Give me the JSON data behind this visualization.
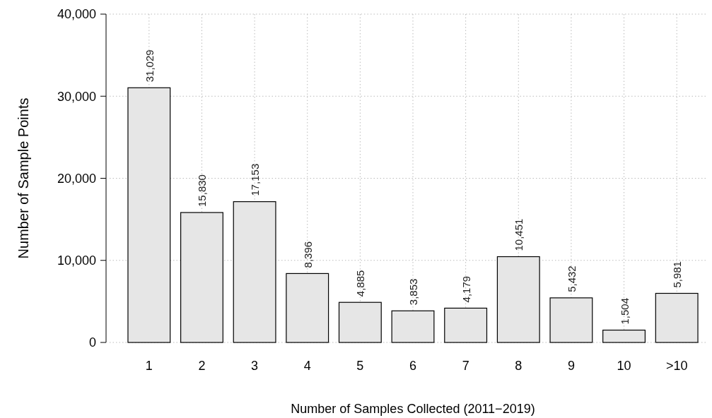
{
  "chart_data": {
    "type": "bar",
    "xlabel": "Number of Samples Collected (2011−2019)",
    "ylabel": "Number of Sample Points",
    "categories": [
      "1",
      "2",
      "3",
      "4",
      "5",
      "6",
      "7",
      "8",
      "9",
      "10",
      ">10"
    ],
    "values": [
      31029,
      15830,
      17153,
      8396,
      4885,
      3853,
      4179,
      10451,
      5432,
      1504,
      5981
    ],
    "value_labels": [
      "31,029",
      "15,830",
      "17,153",
      "8,396",
      "4,885",
      "3,853",
      "4,179",
      "10,451",
      "5,432",
      "1,504",
      "5,981"
    ],
    "color": "#e6e6e6",
    "ylim": [
      0,
      40000
    ],
    "yticks": [
      {
        "value": 0,
        "label": "0"
      },
      {
        "value": 10000,
        "label": "10,000"
      },
      {
        "value": 20000,
        "label": "20,000"
      },
      {
        "value": 30000,
        "label": "30,000"
      },
      {
        "value": 40000,
        "label": "40,000"
      }
    ],
    "grid": true
  }
}
